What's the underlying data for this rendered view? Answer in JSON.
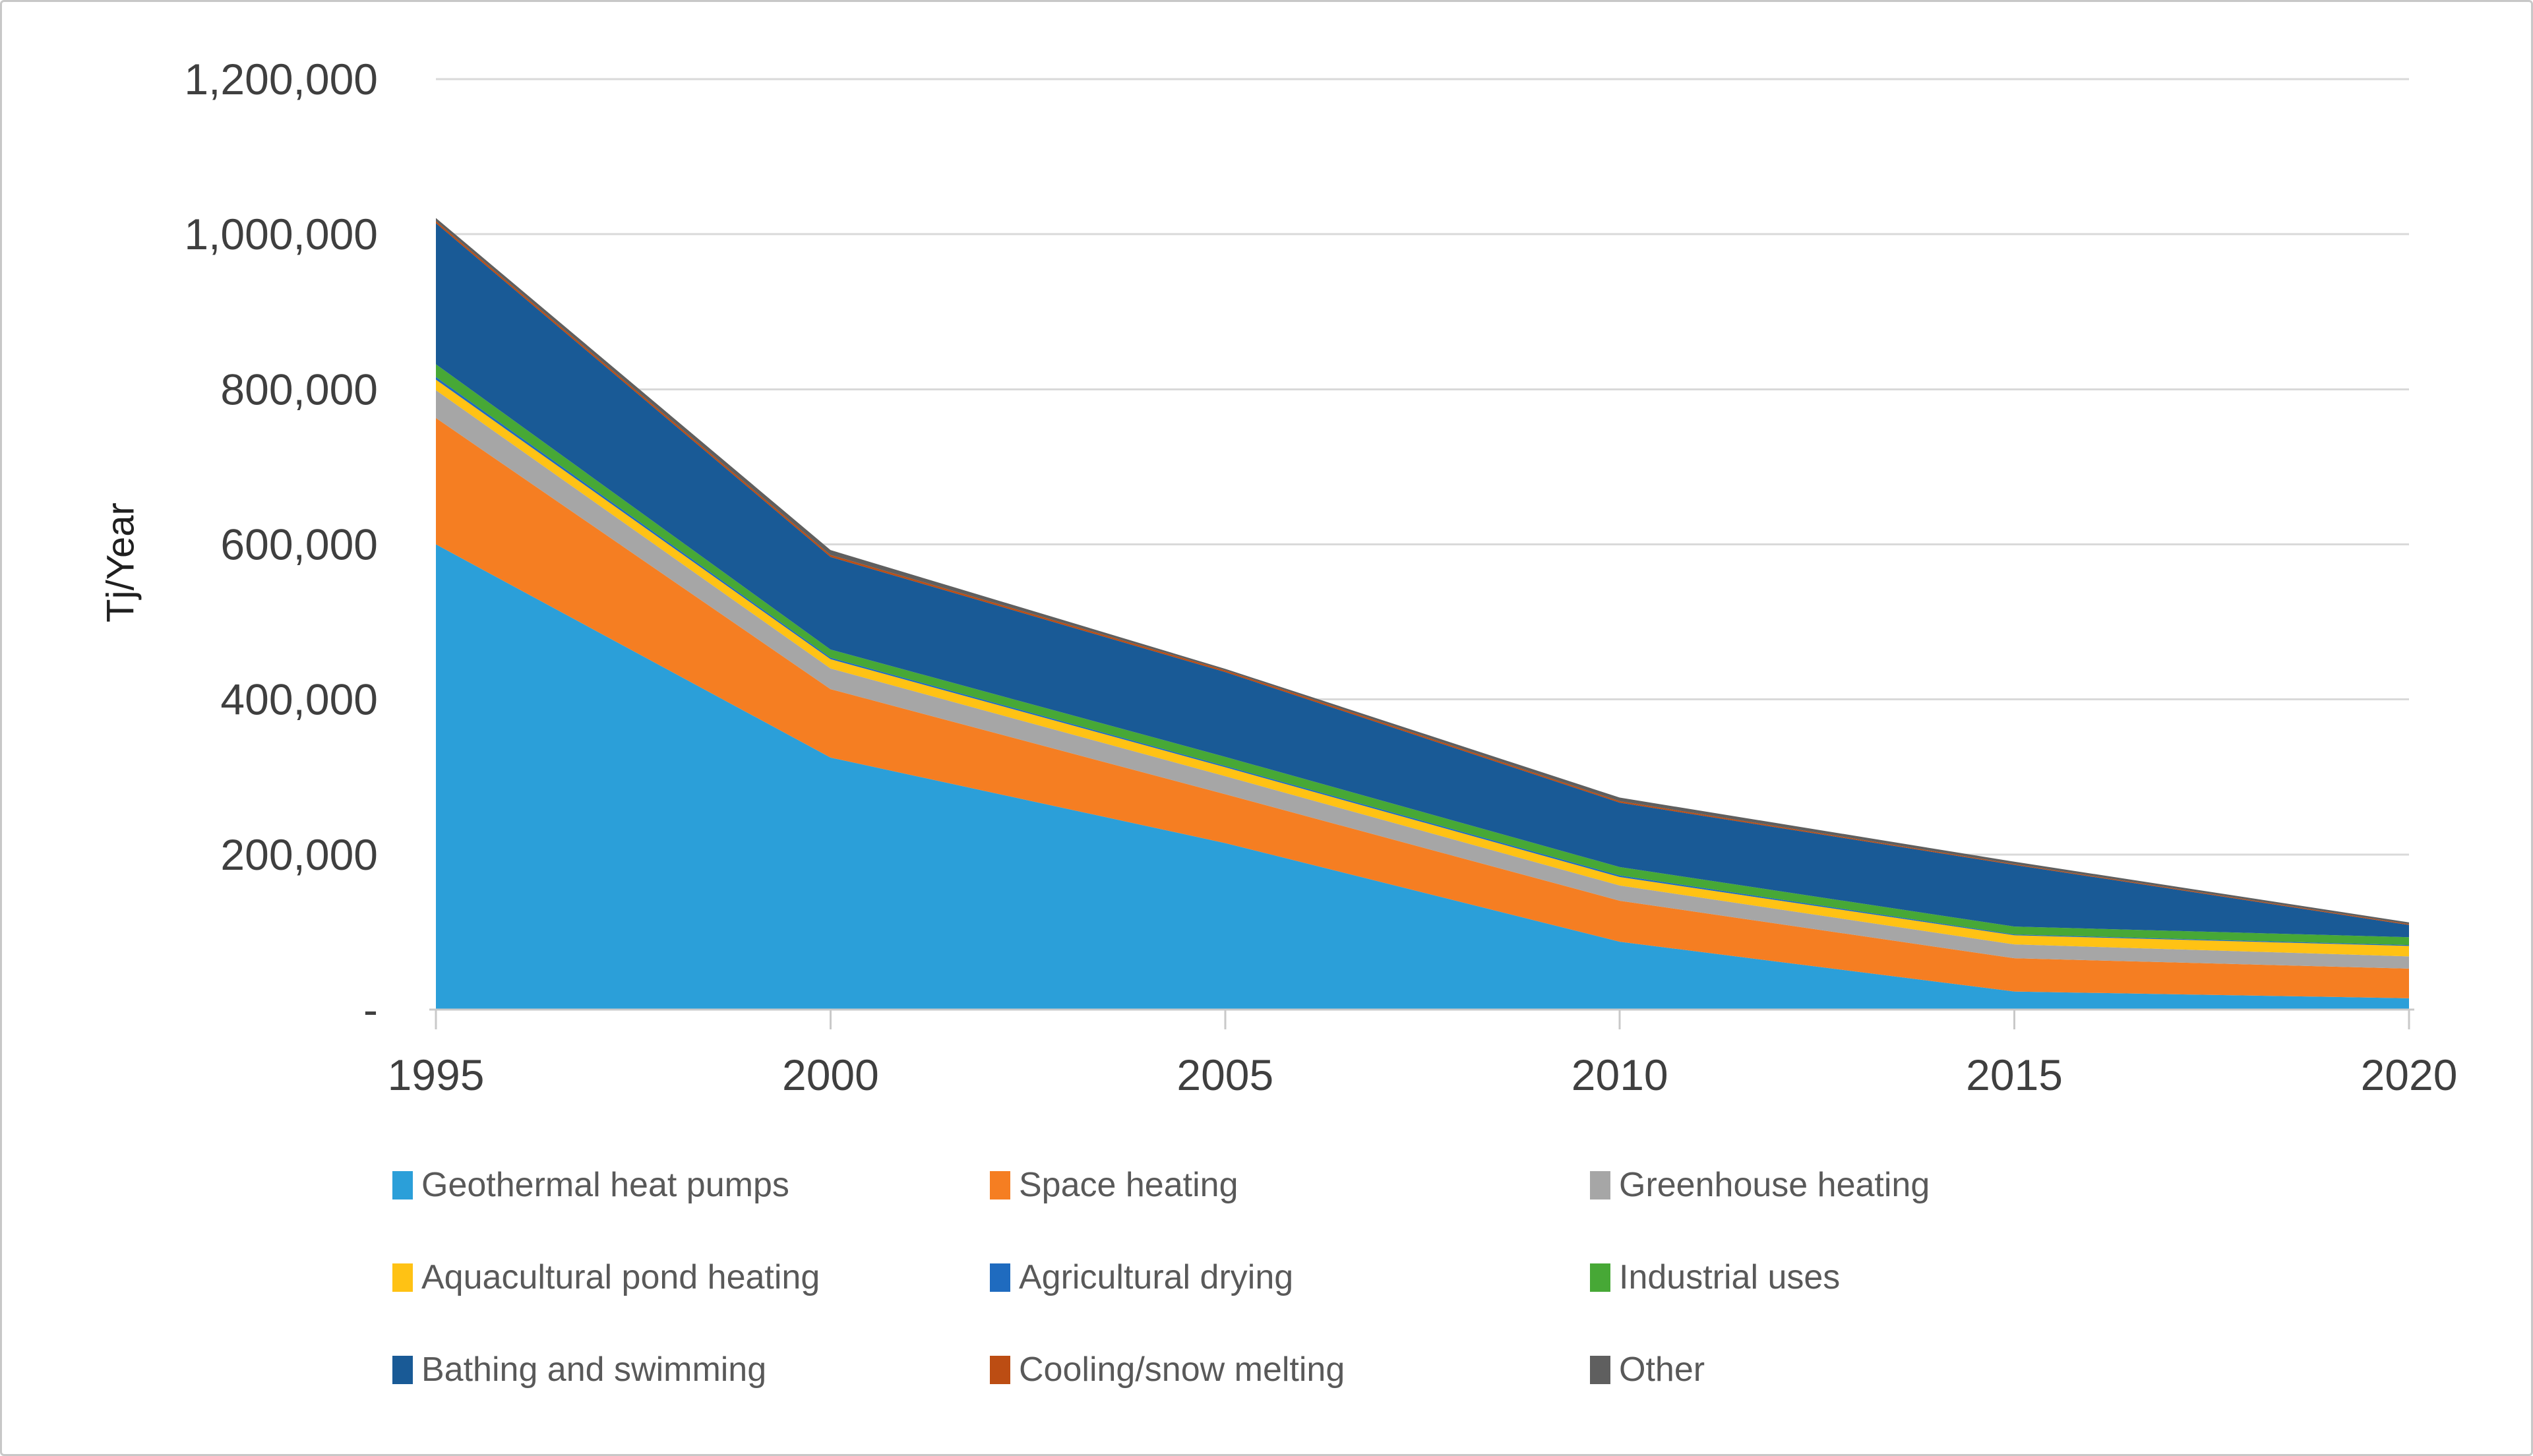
{
  "page": {
    "background": "#FFFFFF",
    "border_color": "#C8C8C8"
  },
  "chart_data": {
    "type": "area",
    "stacked": true,
    "title": "",
    "xlabel": "",
    "ylabel": "Tj/Year",
    "categories": [
      "1995",
      "2000",
      "2005",
      "2010",
      "2015",
      "2020"
    ],
    "ylim": [
      0,
      1200000
    ],
    "y_tick_interval": 200000,
    "y_tick_labels_top_to_bottom": [
      "1,200,000",
      "1,000,000",
      "800,000",
      "600,000",
      "400,000",
      "200,000",
      "-"
    ],
    "grid": "horizontal",
    "legend_position": "bottom",
    "legend_columns": 3,
    "series": [
      {
        "name": "Geothermal heat pumps",
        "color": "#2B9FD9",
        "values": [
          599981,
          325028,
          214782,
          87503,
          23275,
          14617
        ]
      },
      {
        "name": "Space heating",
        "color": "#F57E22",
        "values": [
          162979,
          88222,
          62984,
          52868,
          42926,
          38230
        ]
      },
      {
        "name": "Greenhouse heating",
        "color": "#A6A6A6",
        "values": [
          35826,
          26662,
          23264,
          19607,
          17864,
          15742
        ]
      },
      {
        "name": "Aquacultural pond heating",
        "color": "#FFC214",
        "values": [
          13573,
          11958,
          11521,
          10969,
          11733,
          13493
        ]
      },
      {
        "name": "Agricultural drying",
        "color": "#1F6BBF",
        "values": [
          3529,
          2030,
          1662,
          2013,
          1038,
          1124
        ]
      },
      {
        "name": "Industrial uses",
        "color": "#47A836",
        "values": [
          16390,
          10453,
          11746,
          10868,
          10220,
          10120
        ]
      },
      {
        "name": "Bathing and swimming",
        "color": "#195A96",
        "values": [
          181957,
          119381,
          109410,
          83018,
          79546,
          15742
        ]
      },
      {
        "name": "Cooling/snow melting",
        "color": "#BC4D13",
        "values": [
          2589,
          2600,
          2126,
          1885,
          1063,
          1124
        ]
      },
      {
        "name": "Other",
        "color": "#5F5F5F",
        "values": [
          4063,
          6304,
          2000,
          4641,
          3034,
          2249
        ]
      }
    ],
    "totals_by_category": [
      1020887,
      592638,
      439495,
      273372,
      190699,
      112441
    ],
    "colors": {
      "gridline": "#D9D9D9",
      "axis_line": "#C9C9C9",
      "tick_text": "#3F3F3F",
      "legend_text": "#595959",
      "axis_title_text": "#1F1F1F"
    }
  }
}
